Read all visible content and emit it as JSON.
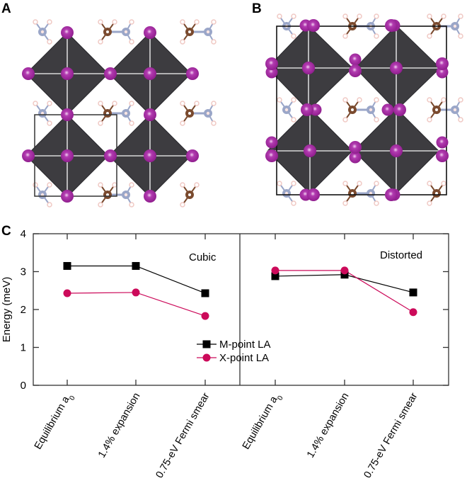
{
  "panels": {
    "a_label": "A",
    "b_label": "B",
    "c_label": "C"
  },
  "structure_colors": {
    "octahedron": "#3d3c40",
    "iodine": "#8e1c8c",
    "carbon": "#7a4a2e",
    "nitrogen": "#9aa6c8",
    "hydrogen": "#f0c9c4",
    "cell_line": "#000000",
    "bond": "#d8d8d8"
  },
  "chart_data": {
    "type": "line",
    "title": "",
    "xlabel": "",
    "ylabel": "Energy (meV)",
    "ylim": [
      0,
      4
    ],
    "yticks": [
      "0",
      "1",
      "2",
      "3",
      "4"
    ],
    "grid": false,
    "legend_position": "center",
    "groups": [
      {
        "name": "Cubic",
        "categories": [
          "Equilibrium a0",
          "1.4% expansion",
          "0.75-eV Fermi smear"
        ],
        "series": [
          {
            "name": "M-point LA",
            "values": [
              3.15,
              3.15,
              2.43
            ]
          },
          {
            "name": "X-point LA",
            "values": [
              2.43,
              2.45,
              1.83
            ]
          }
        ]
      },
      {
        "name": "Distorted",
        "categories": [
          "Equilibrium a0",
          "1.4% expansion",
          "0.75-eV Fermi smear"
        ],
        "series": [
          {
            "name": "M-point LA",
            "values": [
              2.88,
              2.92,
              2.45
            ]
          },
          {
            "name": "X-point LA",
            "values": [
              3.03,
              3.03,
              1.93
            ]
          }
        ]
      }
    ],
    "category_labels": [
      {
        "main": "Equilibrium a",
        "sub": "0"
      },
      {
        "main": "1.4% expansion",
        "sub": ""
      },
      {
        "main": "0.75-eV Fermi smear",
        "sub": ""
      }
    ],
    "legend": [
      {
        "name": "M-point LA",
        "marker": "square",
        "color": "#000000"
      },
      {
        "name": "X-point LA",
        "marker": "circle",
        "color": "#cc0a5a"
      }
    ]
  }
}
